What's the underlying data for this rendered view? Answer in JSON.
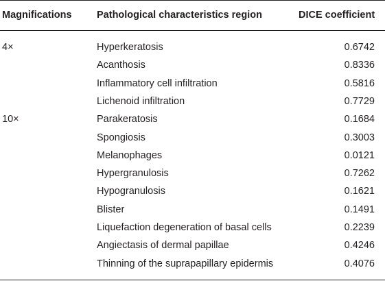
{
  "table": {
    "headers": {
      "magnifications": "Magnifications",
      "region": "Pathological characteristics region",
      "dice": "DICE coefficient"
    },
    "groups": [
      {
        "magnification": "4×",
        "rows": [
          {
            "region": "Hyperkeratosis",
            "dice": "0.6742"
          },
          {
            "region": "Acanthosis",
            "dice": "0.8336"
          },
          {
            "region": "Inflammatory cell infiltration",
            "dice": "0.5816"
          },
          {
            "region": "Lichenoid infiltration",
            "dice": "0.7729"
          }
        ]
      },
      {
        "magnification": "10×",
        "rows": [
          {
            "region": "Parakeratosis",
            "dice": "0.1684"
          },
          {
            "region": "Spongiosis",
            "dice": "0.3003"
          },
          {
            "region": "Melanophages",
            "dice": "0.0121"
          },
          {
            "region": "Hypergranulosis",
            "dice": "0.7262"
          },
          {
            "region": "Hypogranulosis",
            "dice": "0.1621"
          },
          {
            "region": "Blister",
            "dice": "0.1491"
          },
          {
            "region": "Liquefaction degeneration of basal cells",
            "dice": "0.2239"
          },
          {
            "region": "Angiectasis of dermal papillae",
            "dice": "0.4246"
          },
          {
            "region": "Thinning of the suprapapillary epidermis",
            "dice": "0.4076"
          }
        ]
      }
    ]
  }
}
